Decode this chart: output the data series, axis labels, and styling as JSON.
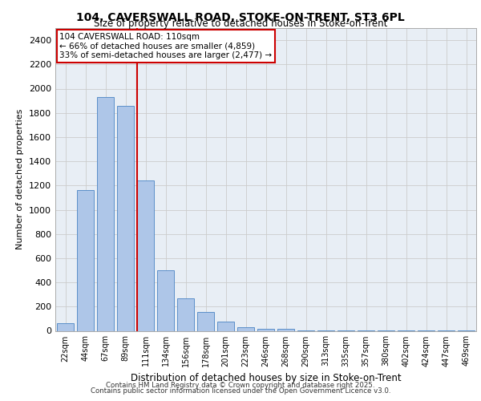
{
  "title_line1": "104, CAVERSWALL ROAD, STOKE-ON-TRENT, ST3 6PL",
  "title_line2": "Size of property relative to detached houses in Stoke-on-Trent",
  "xlabel": "Distribution of detached houses by size in Stoke-on-Trent",
  "ylabel": "Number of detached properties",
  "categories": [
    "22sqm",
    "44sqm",
    "67sqm",
    "89sqm",
    "111sqm",
    "134sqm",
    "156sqm",
    "178sqm",
    "201sqm",
    "223sqm",
    "246sqm",
    "268sqm",
    "290sqm",
    "313sqm",
    "335sqm",
    "357sqm",
    "380sqm",
    "402sqm",
    "424sqm",
    "447sqm",
    "469sqm"
  ],
  "values": [
    60,
    1160,
    1930,
    1860,
    1240,
    500,
    270,
    155,
    75,
    30,
    18,
    15,
    5,
    3,
    2,
    2,
    1,
    1,
    1,
    1,
    1
  ],
  "bar_color": "#aec6e8",
  "bar_edge_color": "#5b8fc9",
  "vline_x_index": 4,
  "vline_color": "#cc0000",
  "annotation_title": "104 CAVERSWALL ROAD: 110sqm",
  "annotation_line2": "← 66% of detached houses are smaller (4,859)",
  "annotation_line3": "33% of semi-detached houses are larger (2,477) →",
  "annotation_box_color": "#ffffff",
  "annotation_box_edge": "#cc0000",
  "ylim": [
    0,
    2500
  ],
  "yticks": [
    0,
    200,
    400,
    600,
    800,
    1000,
    1200,
    1400,
    1600,
    1800,
    2000,
    2200,
    2400
  ],
  "grid_color": "#cccccc",
  "bg_color": "#e8eef5",
  "footer_line1": "Contains HM Land Registry data © Crown copyright and database right 2025.",
  "footer_line2": "Contains public sector information licensed under the Open Government Licence v3.0."
}
